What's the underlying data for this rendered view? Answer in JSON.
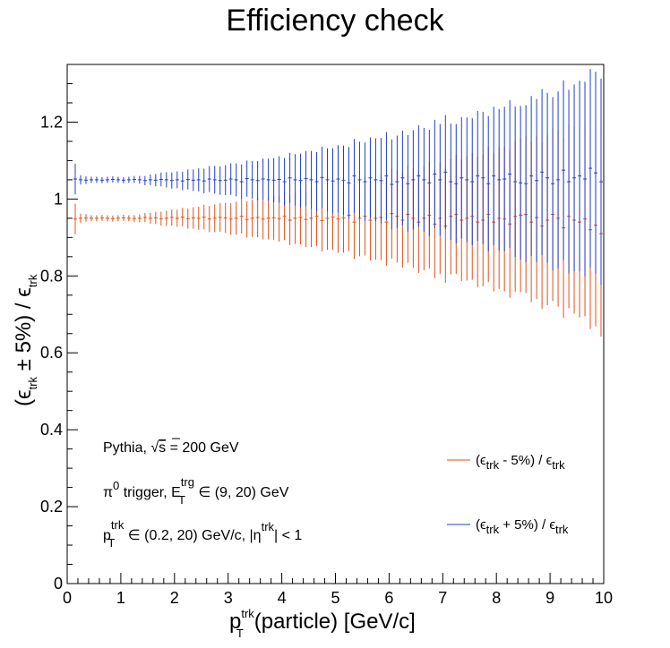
{
  "chart_data": {
    "type": "scatter",
    "title": "Efficiency check",
    "xlabel": {
      "p": "p",
      "sup": "trk",
      "sub": "T",
      "rest": "(particle) [GeV/c]"
    },
    "ylabel": {
      "open": "(",
      "eps": "ϵ",
      "sub1": "trk",
      "pm": " ± 5%) / ",
      "eps2": "ϵ",
      "sub2": "trk"
    },
    "xlim": [
      0,
      10
    ],
    "ylim": [
      0,
      1.35
    ],
    "xticks": [
      0,
      1,
      2,
      3,
      4,
      5,
      6,
      7,
      8,
      9,
      10
    ],
    "yticks": [
      0,
      0.2,
      0.4,
      0.6,
      0.8,
      1,
      1.2
    ],
    "ytick_labels": [
      "0",
      "0.2",
      "0.4",
      "0.6",
      "0.8",
      "1",
      "1.2"
    ],
    "grid": false,
    "legend_position": "bottom-right",
    "annotations": {
      "line1": {
        "text": "Pythia, ",
        "sqrt": "√",
        "s": "s",
        "rest": " = 200 GeV"
      },
      "line2": {
        "pi": "π",
        "pisup": "0",
        "text": " trigger, E",
        "sup": "trg",
        "sub": "T",
        "rest": " ∈ (9, 20) GeV"
      },
      "line3": {
        "p": "p",
        "sup": "trk",
        "sub": "T",
        "mid": " ∈ (0.2, 20) GeV/c, |η",
        "sup2": "trk",
        "rest": "| < 1"
      }
    },
    "series": [
      {
        "name": {
          "open": "(ϵ",
          "sub": "trk",
          "rest": " - 5%) / ϵ",
          "sub2": "trk"
        },
        "color": "#e0521b",
        "x": [
          0.15,
          0.25,
          0.35,
          0.45,
          0.55,
          0.65,
          0.75,
          0.85,
          0.95,
          1.05,
          1.15,
          1.25,
          1.35,
          1.45,
          1.55,
          1.65,
          1.75,
          1.85,
          1.95,
          2.05,
          2.15,
          2.25,
          2.35,
          2.45,
          2.55,
          2.65,
          2.75,
          2.85,
          2.95,
          3.05,
          3.15,
          3.25,
          3.35,
          3.45,
          3.55,
          3.65,
          3.75,
          3.85,
          3.95,
          4.05,
          4.15,
          4.25,
          4.35,
          4.45,
          4.55,
          4.65,
          4.75,
          4.85,
          4.95,
          5.05,
          5.15,
          5.25,
          5.35,
          5.45,
          5.55,
          5.65,
          5.75,
          5.85,
          5.95,
          6.05,
          6.15,
          6.25,
          6.35,
          6.45,
          6.55,
          6.65,
          6.75,
          6.85,
          6.95,
          7.05,
          7.15,
          7.25,
          7.35,
          7.45,
          7.55,
          7.65,
          7.75,
          7.85,
          7.95,
          8.05,
          8.15,
          8.25,
          8.35,
          8.45,
          8.55,
          8.65,
          8.75,
          8.85,
          8.95,
          9.05,
          9.15,
          9.25,
          9.35,
          9.45,
          9.55,
          9.65,
          9.75,
          9.85,
          9.95
        ],
        "y": [
          0.948,
          0.95,
          0.951,
          0.95,
          0.95,
          0.951,
          0.95,
          0.949,
          0.95,
          0.951,
          0.95,
          0.949,
          0.95,
          0.952,
          0.95,
          0.951,
          0.949,
          0.95,
          0.952,
          0.95,
          0.953,
          0.949,
          0.951,
          0.95,
          0.953,
          0.948,
          0.95,
          0.952,
          0.951,
          0.948,
          0.95,
          0.955,
          0.947,
          0.95,
          0.952,
          0.948,
          0.95,
          0.951,
          0.949,
          0.955,
          0.945,
          0.95,
          0.952,
          0.947,
          0.95,
          0.955,
          0.944,
          0.95,
          0.953,
          0.948,
          0.951,
          0.958,
          0.94,
          0.95,
          0.955,
          0.945,
          0.95,
          0.952,
          0.94,
          0.962,
          0.955,
          0.945,
          0.96,
          0.95,
          0.94,
          0.95,
          0.958,
          0.935,
          0.95,
          0.93,
          0.955,
          0.96,
          0.945,
          0.95,
          0.955,
          0.94,
          0.945,
          0.96,
          0.94,
          0.95,
          0.948,
          0.935,
          0.955,
          0.958,
          0.96,
          0.94,
          0.952,
          0.93,
          0.945,
          0.96,
          0.95,
          0.925,
          0.955,
          0.945,
          0.94,
          0.948,
          0.92,
          0.932,
          0.91
        ],
        "err": [
          0.04,
          0.012,
          0.01,
          0.008,
          0.008,
          0.008,
          0.008,
          0.008,
          0.008,
          0.008,
          0.008,
          0.009,
          0.01,
          0.012,
          0.014,
          0.016,
          0.018,
          0.02,
          0.021,
          0.022,
          0.024,
          0.026,
          0.028,
          0.03,
          0.032,
          0.034,
          0.036,
          0.037,
          0.039,
          0.041,
          0.043,
          0.045,
          0.047,
          0.049,
          0.051,
          0.053,
          0.055,
          0.057,
          0.06,
          0.062,
          0.065,
          0.067,
          0.07,
          0.072,
          0.075,
          0.077,
          0.08,
          0.082,
          0.085,
          0.088,
          0.09,
          0.093,
          0.096,
          0.099,
          0.102,
          0.105,
          0.108,
          0.111,
          0.114,
          0.117,
          0.12,
          0.123,
          0.126,
          0.129,
          0.132,
          0.135,
          0.138,
          0.141,
          0.145,
          0.148,
          0.151,
          0.155,
          0.158,
          0.162,
          0.165,
          0.169,
          0.172,
          0.176,
          0.18,
          0.184,
          0.188,
          0.192,
          0.196,
          0.2,
          0.204,
          0.208,
          0.212,
          0.216,
          0.221,
          0.225,
          0.23,
          0.234,
          0.239,
          0.243,
          0.248,
          0.253,
          0.258,
          0.263,
          0.268
        ]
      },
      {
        "name": {
          "open": "(ϵ",
          "sub": "trk",
          "rest": " + 5%) / ϵ",
          "sub2": "trk"
        },
        "color": "#1f3fc8",
        "x": [
          0.15,
          0.25,
          0.35,
          0.45,
          0.55,
          0.65,
          0.75,
          0.85,
          0.95,
          1.05,
          1.15,
          1.25,
          1.35,
          1.45,
          1.55,
          1.65,
          1.75,
          1.85,
          1.95,
          2.05,
          2.15,
          2.25,
          2.35,
          2.45,
          2.55,
          2.65,
          2.75,
          2.85,
          2.95,
          3.05,
          3.15,
          3.25,
          3.35,
          3.45,
          3.55,
          3.65,
          3.75,
          3.85,
          3.95,
          4.05,
          4.15,
          4.25,
          4.35,
          4.45,
          4.55,
          4.65,
          4.75,
          4.85,
          4.95,
          5.05,
          5.15,
          5.25,
          5.35,
          5.45,
          5.55,
          5.65,
          5.75,
          5.85,
          5.95,
          6.05,
          6.15,
          6.25,
          6.35,
          6.45,
          6.55,
          6.65,
          6.75,
          6.85,
          6.95,
          7.05,
          7.15,
          7.25,
          7.35,
          7.45,
          7.55,
          7.65,
          7.75,
          7.85,
          7.95,
          8.05,
          8.15,
          8.25,
          8.35,
          8.45,
          8.55,
          8.65,
          8.75,
          8.85,
          8.95,
          9.05,
          9.15,
          9.25,
          9.35,
          9.45,
          9.55,
          9.65,
          9.75,
          9.85,
          9.95
        ],
        "y": [
          1.052,
          1.05,
          1.049,
          1.05,
          1.05,
          1.049,
          1.05,
          1.051,
          1.05,
          1.049,
          1.05,
          1.051,
          1.05,
          1.048,
          1.05,
          1.049,
          1.051,
          1.05,
          1.048,
          1.05,
          1.047,
          1.051,
          1.049,
          1.05,
          1.047,
          1.052,
          1.05,
          1.048,
          1.049,
          1.052,
          1.05,
          1.045,
          1.053,
          1.05,
          1.048,
          1.052,
          1.05,
          1.049,
          1.051,
          1.045,
          1.055,
          1.05,
          1.048,
          1.053,
          1.05,
          1.045,
          1.056,
          1.05,
          1.047,
          1.052,
          1.049,
          1.042,
          1.06,
          1.05,
          1.045,
          1.055,
          1.05,
          1.048,
          1.06,
          1.038,
          1.045,
          1.055,
          1.04,
          1.05,
          1.06,
          1.05,
          1.042,
          1.065,
          1.05,
          1.07,
          1.045,
          1.04,
          1.055,
          1.05,
          1.045,
          1.06,
          1.055,
          1.04,
          1.06,
          1.05,
          1.052,
          1.065,
          1.045,
          1.042,
          1.04,
          1.06,
          1.048,
          1.07,
          1.055,
          1.04,
          1.05,
          1.075,
          1.045,
          1.055,
          1.06,
          1.052,
          1.08,
          1.068,
          1.045
        ],
        "err": [
          0.04,
          0.012,
          0.01,
          0.008,
          0.008,
          0.008,
          0.008,
          0.008,
          0.008,
          0.008,
          0.008,
          0.009,
          0.01,
          0.012,
          0.014,
          0.016,
          0.018,
          0.02,
          0.021,
          0.022,
          0.024,
          0.026,
          0.028,
          0.03,
          0.032,
          0.034,
          0.036,
          0.037,
          0.039,
          0.041,
          0.043,
          0.045,
          0.047,
          0.049,
          0.051,
          0.053,
          0.055,
          0.057,
          0.06,
          0.062,
          0.065,
          0.067,
          0.07,
          0.072,
          0.075,
          0.077,
          0.08,
          0.082,
          0.085,
          0.088,
          0.09,
          0.093,
          0.096,
          0.099,
          0.102,
          0.105,
          0.108,
          0.111,
          0.114,
          0.117,
          0.12,
          0.123,
          0.126,
          0.129,
          0.132,
          0.135,
          0.138,
          0.141,
          0.145,
          0.148,
          0.151,
          0.155,
          0.158,
          0.162,
          0.165,
          0.169,
          0.172,
          0.176,
          0.18,
          0.184,
          0.188,
          0.192,
          0.196,
          0.2,
          0.204,
          0.208,
          0.212,
          0.216,
          0.221,
          0.225,
          0.23,
          0.234,
          0.239,
          0.243,
          0.248,
          0.253,
          0.258,
          0.263,
          0.268
        ]
      }
    ]
  }
}
